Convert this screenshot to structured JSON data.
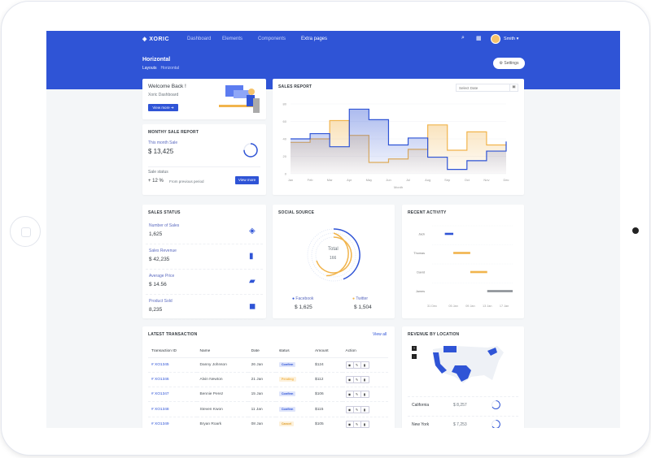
{
  "header": {
    "logo": "XORIC",
    "nav": [
      "Dashboard",
      "Elements",
      "Components",
      "Extra pages"
    ],
    "user": "Smith",
    "page_title": "Horizontal",
    "breadcrumb": [
      "Layouts",
      "Horizontal"
    ],
    "settings_label": "Settings",
    "brand_color": "#2f54d6"
  },
  "welcome": {
    "title": "Welcome Back !",
    "subtitle": "Xoric Dashboard",
    "button": "View more"
  },
  "monthly": {
    "title": "MONTHY SALE REPORT",
    "label": "This month Sale",
    "value": "$ 13,425",
    "status_label": "Sale status",
    "change": "+ 12 %",
    "change_note": "From previous period",
    "button": "View more",
    "progress": 0.75
  },
  "sales_report": {
    "title": "SALES REPORT",
    "date_placeholder": "Select Date"
  },
  "chart_data": {
    "type": "line",
    "step": true,
    "categories": [
      "Jan",
      "Feb",
      "Mar",
      "Apr",
      "May",
      "Jun",
      "Jul",
      "Aug",
      "Sep",
      "Oct",
      "Nov",
      "Dec"
    ],
    "xlabel": "Month",
    "ylim": [
      0,
      80
    ],
    "yticks": [
      0,
      20,
      40,
      60,
      80
    ],
    "series": [
      {
        "color": "#2f54d6",
        "values": [
          40,
          46,
          31,
          74,
          62,
          33,
          41,
          19,
          5,
          15,
          26,
          37
        ]
      },
      {
        "color": "#f1b44c",
        "values": [
          36,
          40,
          61,
          44,
          13,
          17,
          28,
          56,
          27,
          48,
          33,
          33
        ]
      }
    ]
  },
  "sales_status": {
    "title": "SALES STATUS",
    "items": [
      {
        "label": "Number of Sales",
        "value": "1,625",
        "icon": "layers-icon"
      },
      {
        "label": "Sales Revenue",
        "value": "$ 42,235",
        "icon": "bar-chart-icon"
      },
      {
        "label": "Average Price",
        "value": "$ 14.56",
        "icon": "ticket-icon"
      },
      {
        "label": "Product Sold",
        "value": "8,235",
        "icon": "box-icon"
      }
    ]
  },
  "social": {
    "title": "SOCIAL SOURCE",
    "total_label": "Total",
    "total": "166",
    "facebook_label": "Facebook",
    "facebook_value": "$ 1,625",
    "twitter_label": "Twitter",
    "twitter_value": "$ 1,504"
  },
  "activity": {
    "title": "RECENT ACTIVITY",
    "names": [
      "Jack",
      "Thomas",
      "David",
      "James"
    ],
    "ticks": [
      "31 Dec",
      "05 Jan",
      "09 Jan",
      "13 Jan",
      "17 Jan"
    ],
    "bars": [
      {
        "start": 2,
        "end": 4,
        "color": "#2f54d6"
      },
      {
        "start": 4,
        "end": 8,
        "color": "#f1b44c"
      },
      {
        "start": 8,
        "end": 12,
        "color": "#f1b44c"
      },
      {
        "start": 12,
        "end": 18,
        "color": "#8c9096"
      }
    ]
  },
  "transactions": {
    "title": "LATEST TRANSACTION",
    "view_all": "View all",
    "columns": [
      "Transaction ID",
      "Name",
      "Date",
      "status",
      "Amount",
      "Action"
    ],
    "rows": [
      {
        "id": "# XO1345",
        "name": "Danny Johnson",
        "date": "26 Jan",
        "status": "Confirm",
        "amount": "$124"
      },
      {
        "id": "# XO1346",
        "name": "Alvin Newton",
        "date": "21 Jan",
        "status": "Pending",
        "amount": "$112"
      },
      {
        "id": "# XO1347",
        "name": "Bennie Perez",
        "date": "15 Jan",
        "status": "Confirm",
        "amount": "$106"
      },
      {
        "id": "# XO1348",
        "name": "Steven Kwon",
        "date": "11 Jan",
        "status": "Confirm",
        "amount": "$115"
      },
      {
        "id": "# XO1349",
        "name": "Bryan Roark",
        "date": "08 Jan",
        "status": "Cancel",
        "amount": "$105"
      }
    ]
  },
  "revenue": {
    "title": "REVENUE BY LOCATION",
    "zoom_in": "+",
    "zoom_out": "-",
    "locations": [
      {
        "name": "California",
        "value": "$ 8,257"
      },
      {
        "name": "New York",
        "value": "$ 7,253"
      }
    ]
  }
}
